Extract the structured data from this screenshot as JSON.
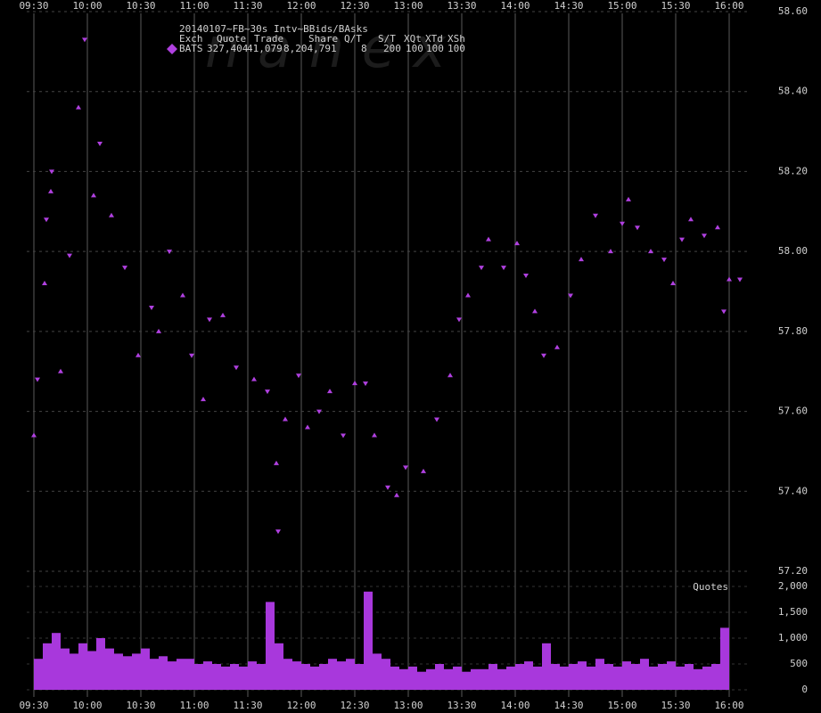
{
  "chart_data": [
    {
      "type": "scatter",
      "watermark": "n a n e x",
      "legend": {
        "title": "20140107~FB~30s Intv~BBids/BAsks",
        "columns": [
          "Exch",
          "Quote",
          "Trade",
          "Share",
          "Q/T",
          "S/T",
          "XQt",
          "XTd",
          "XSh"
        ],
        "values": [
          "327,404",
          "41,079",
          "8,204,791",
          "8",
          "200",
          "100",
          "100",
          "100"
        ]
      },
      "xlim": [
        -4,
        401
      ],
      "xticks": [
        {
          "value": 0,
          "label": "09:30"
        },
        {
          "value": 30,
          "label": "10:00"
        },
        {
          "value": 60,
          "label": "10:30"
        },
        {
          "value": 90,
          "label": "11:00"
        },
        {
          "value": 120,
          "label": "11:30"
        },
        {
          "value": 150,
          "label": "12:00"
        },
        {
          "value": 180,
          "label": "12:30"
        },
        {
          "value": 210,
          "label": "13:00"
        },
        {
          "value": 240,
          "label": "13:30"
        },
        {
          "value": 270,
          "label": "14:00"
        },
        {
          "value": 300,
          "label": "14:30"
        },
        {
          "value": 330,
          "label": "15:00"
        },
        {
          "value": 360,
          "label": "15:30"
        },
        {
          "value": 390,
          "label": "16:00"
        }
      ],
      "ylim": [
        57.2,
        58.6
      ],
      "yticks": [
        {
          "value": 57.2,
          "label": "57.20"
        },
        {
          "value": 57.4,
          "label": "57.40"
        },
        {
          "value": 57.6,
          "label": "57.60"
        },
        {
          "value": 57.8,
          "label": "57.80"
        },
        {
          "value": 58.0,
          "label": "58.00"
        },
        {
          "value": 58.2,
          "label": "58.20"
        },
        {
          "value": 58.4,
          "label": "58.40"
        },
        {
          "value": 58.6,
          "label": "58.60"
        }
      ],
      "grid": true,
      "series": [
        {
          "name": "BATS",
          "color": "#b040e0",
          "x": [
            0,
            2,
            6,
            7,
            9.5,
            10,
            15,
            20,
            25,
            28.5,
            33.5,
            37,
            43.5,
            51,
            58.5,
            66,
            70,
            76,
            83.5,
            88.5,
            95,
            98.5,
            106,
            113.5,
            123.5,
            131,
            136,
            137,
            141,
            148.5,
            153.5,
            160,
            166,
            173.5,
            180,
            186,
            191,
            198.5,
            203.5,
            208.5,
            218.5,
            226,
            233.5,
            238.5,
            243.5,
            251,
            255,
            263.5,
            271,
            276,
            281,
            286,
            293.5,
            301,
            307,
            315,
            323.5,
            330,
            333.5,
            338.5,
            346,
            353.5,
            358.5,
            363.5,
            368.5,
            376,
            383.5,
            387,
            390,
            396
          ],
          "values": [
            57.54,
            57.68,
            57.92,
            58.08,
            58.15,
            58.2,
            57.7,
            57.99,
            58.36,
            58.53,
            58.14,
            58.27,
            58.09,
            57.96,
            57.74,
            57.86,
            57.8,
            58.0,
            57.89,
            57.74,
            57.63,
            57.83,
            57.84,
            57.71,
            57.68,
            57.65,
            57.47,
            57.3,
            57.58,
            57.69,
            57.56,
            57.6,
            57.65,
            57.54,
            57.67,
            57.67,
            57.54,
            57.41,
            57.39,
            57.46,
            57.45,
            57.58,
            57.69,
            57.83,
            57.89,
            57.96,
            58.03,
            57.96,
            58.02,
            57.94,
            57.85,
            57.74,
            57.76,
            57.89,
            57.98,
            58.09,
            58.0,
            58.07,
            58.13,
            58.06,
            58.0,
            57.98,
            57.92,
            58.03,
            58.08,
            58.04,
            58.06,
            57.85,
            57.93,
            57.93
          ]
        }
      ]
    },
    {
      "type": "bar",
      "title": "Quotes",
      "color": "#a838dc",
      "xlim": [
        -4,
        401
      ],
      "xticks": [
        {
          "value": 0,
          "label": "09:30"
        },
        {
          "value": 30,
          "label": "10:00"
        },
        {
          "value": 60,
          "label": "10:30"
        },
        {
          "value": 90,
          "label": "11:00"
        },
        {
          "value": 120,
          "label": "11:30"
        },
        {
          "value": 150,
          "label": "12:00"
        },
        {
          "value": 180,
          "label": "12:30"
        },
        {
          "value": 210,
          "label": "13:00"
        },
        {
          "value": 240,
          "label": "13:30"
        },
        {
          "value": 270,
          "label": "14:00"
        },
        {
          "value": 300,
          "label": "14:30"
        },
        {
          "value": 330,
          "label": "15:00"
        },
        {
          "value": 360,
          "label": "15:30"
        },
        {
          "value": 390,
          "label": "16:00"
        }
      ],
      "ylim": [
        0,
        2000
      ],
      "yticks": [
        0,
        500,
        {
          "value": 1000,
          "label": "1,000"
        },
        {
          "value": 1500,
          "label": "1,500"
        },
        {
          "value": 2000,
          "label": "2,000"
        }
      ],
      "x": [
        0,
        5,
        10,
        15,
        20,
        25,
        30,
        35,
        40,
        45,
        50,
        55,
        60,
        65,
        70,
        75,
        80,
        85,
        90,
        95,
        100,
        105,
        110,
        115,
        120,
        125,
        130,
        135,
        140,
        145,
        150,
        155,
        160,
        165,
        170,
        175,
        180,
        185,
        190,
        195,
        200,
        205,
        210,
        215,
        220,
        225,
        230,
        235,
        240,
        245,
        250,
        255,
        260,
        265,
        270,
        275,
        280,
        285,
        290,
        295,
        300,
        305,
        310,
        315,
        320,
        325,
        330,
        335,
        340,
        345,
        350,
        355,
        360,
        365,
        370,
        375,
        380,
        385
      ],
      "values": [
        600,
        900,
        1100,
        800,
        700,
        900,
        750,
        1000,
        800,
        700,
        650,
        700,
        800,
        600,
        650,
        550,
        600,
        600,
        500,
        550,
        500,
        450,
        500,
        450,
        550,
        500,
        1700,
        900,
        600,
        550,
        500,
        450,
        500,
        600,
        550,
        600,
        500,
        1900,
        700,
        600,
        450,
        400,
        450,
        350,
        400,
        500,
        400,
        450,
        350,
        400,
        400,
        500,
        400,
        450,
        500,
        550,
        450,
        900,
        500,
        450,
        500,
        550,
        450,
        600,
        500,
        450,
        550,
        500,
        600,
        450,
        500,
        550,
        450,
        500,
        400,
        450,
        500,
        1200
      ]
    }
  ]
}
